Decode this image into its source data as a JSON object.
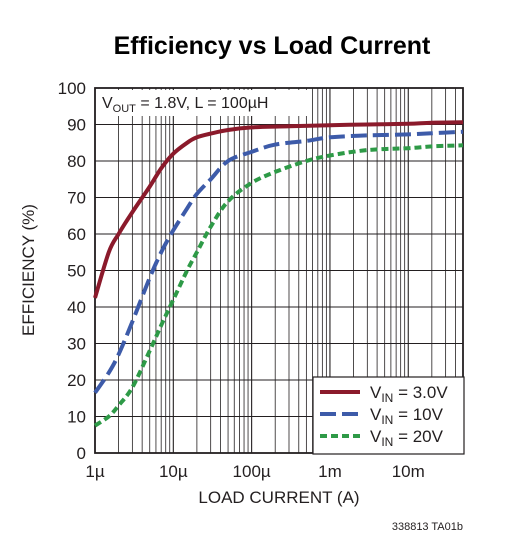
{
  "chart_data": {
    "type": "line",
    "title": "Efficiency vs Load Current",
    "xlabel": "LOAD CURRENT (A)",
    "ylabel": "EFFICIENCY (%)",
    "xscale": "log",
    "xlim": [
      1e-06,
      0.05
    ],
    "ylim": [
      0,
      100
    ],
    "grid": true,
    "legend_position": "bottom-right",
    "x_ticks": [
      {
        "value": 1e-06,
        "label": "1µ"
      },
      {
        "value": 1e-05,
        "label": "10µ"
      },
      {
        "value": 0.0001,
        "label": "100µ"
      },
      {
        "value": 0.001,
        "label": "1m"
      },
      {
        "value": 0.01,
        "label": "10m"
      }
    ],
    "y_ticks": [
      0,
      10,
      20,
      30,
      40,
      50,
      60,
      70,
      80,
      90,
      100
    ],
    "annotation": {
      "prefix": "V",
      "sub": "OUT",
      "rest": " = 1.8V, L = 100µH"
    },
    "series": [
      {
        "label_main": "V",
        "label_sub": "IN",
        "label_rest": " = 3.0V",
        "color": "#8b1a2b",
        "dash": "solid",
        "points": [
          [
            1e-06,
            42.5
          ],
          [
            1.5e-06,
            55
          ],
          [
            2e-06,
            60
          ],
          [
            3e-06,
            66
          ],
          [
            5e-06,
            73
          ],
          [
            7e-06,
            78
          ],
          [
            1e-05,
            82
          ],
          [
            1.5e-05,
            85
          ],
          [
            2e-05,
            86.5
          ],
          [
            3e-05,
            87.5
          ],
          [
            5e-05,
            88.5
          ],
          [
            0.0001,
            89.2
          ],
          [
            0.0003,
            89.5
          ],
          [
            0.001,
            89.8
          ],
          [
            0.003,
            90
          ],
          [
            0.01,
            90.2
          ],
          [
            0.02,
            90.5
          ],
          [
            0.05,
            90.6
          ]
        ]
      },
      {
        "label_main": "V",
        "label_sub": "IN",
        "label_rest": " = 10V",
        "color": "#3d5ba9",
        "dash": "long-dash",
        "points": [
          [
            1e-06,
            16.5
          ],
          [
            1.5e-06,
            22
          ],
          [
            2e-06,
            27
          ],
          [
            3e-06,
            36
          ],
          [
            5e-06,
            48
          ],
          [
            7e-06,
            55
          ],
          [
            1e-05,
            61
          ],
          [
            1.5e-05,
            67
          ],
          [
            2e-05,
            71
          ],
          [
            3e-05,
            75
          ],
          [
            5e-05,
            80
          ],
          [
            0.0001,
            82.5
          ],
          [
            0.0002,
            84.5
          ],
          [
            0.0005,
            85.5
          ],
          [
            0.001,
            86.5
          ],
          [
            0.003,
            87
          ],
          [
            0.01,
            87.3
          ],
          [
            0.02,
            87.6
          ],
          [
            0.05,
            88
          ]
        ]
      },
      {
        "label_main": "V",
        "label_sub": "IN",
        "label_rest": " = 20V",
        "color": "#2e9a47",
        "dash": "short-dash",
        "points": [
          [
            1e-06,
            7.5
          ],
          [
            1.5e-06,
            10
          ],
          [
            2e-06,
            13
          ],
          [
            3e-06,
            18
          ],
          [
            5e-06,
            28
          ],
          [
            7e-06,
            35
          ],
          [
            1e-05,
            42
          ],
          [
            1.5e-05,
            50
          ],
          [
            2e-05,
            55
          ],
          [
            3e-05,
            62
          ],
          [
            5e-05,
            69
          ],
          [
            0.0001,
            74
          ],
          [
            0.0002,
            77
          ],
          [
            0.0005,
            80
          ],
          [
            0.001,
            81.5
          ],
          [
            0.003,
            83
          ],
          [
            0.01,
            83.5
          ],
          [
            0.02,
            84
          ],
          [
            0.05,
            84.3
          ]
        ]
      }
    ]
  },
  "footnote": "338813 TA01b"
}
